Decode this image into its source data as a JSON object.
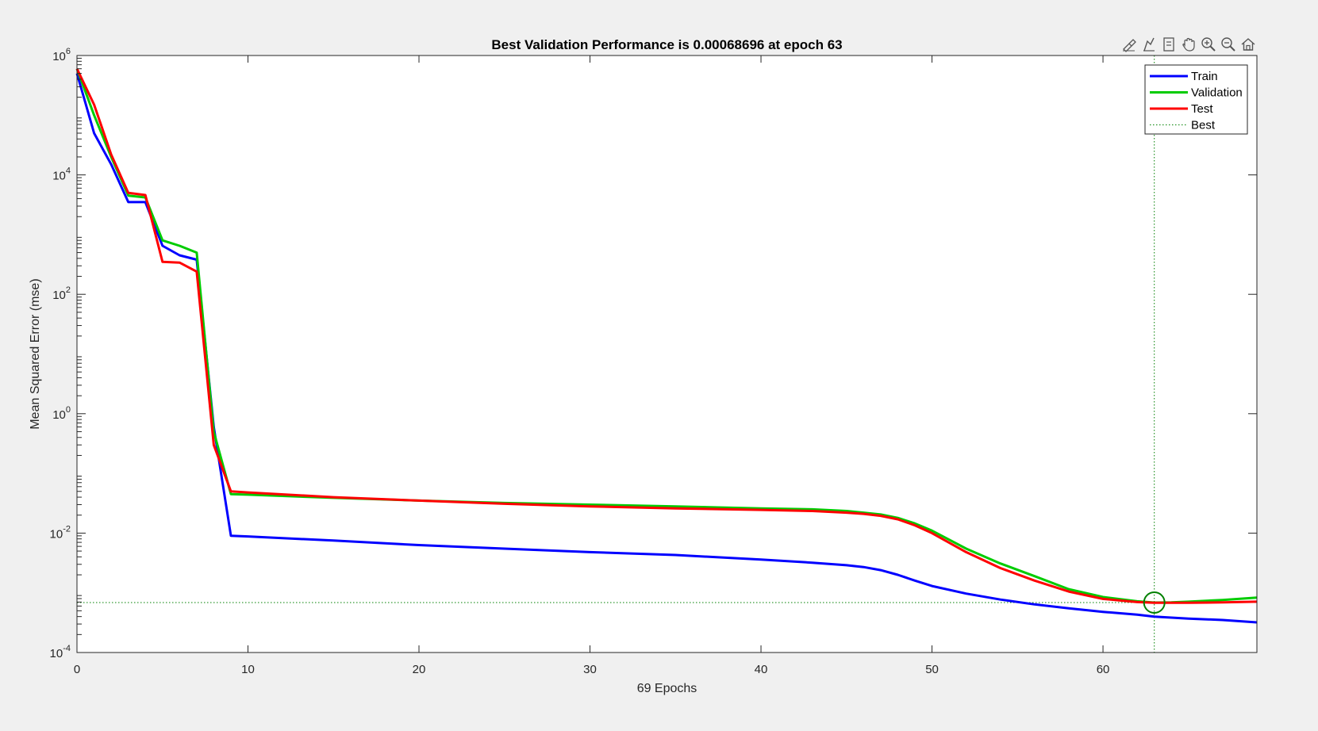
{
  "colors": {
    "train": "#0000ff",
    "validation": "#00cc00",
    "test": "#ff0000",
    "best": "#008000",
    "background": "#f0f0f0",
    "axes": "#ffffff"
  },
  "toolbar": {
    "icons": [
      "brush-icon",
      "data-tip-icon",
      "datacursor-icon",
      "pan-hand-icon",
      "zoom-in-icon",
      "zoom-out-icon",
      "home-icon"
    ]
  },
  "chart_data": {
    "type": "line",
    "title": "Best Validation Performance is 0.00068696 at epoch 63",
    "xlabel": "69 Epochs",
    "ylabel": "Mean Squared Error  (mse)",
    "xlim": [
      0,
      69
    ],
    "ylim": [
      0.0001,
      1000000
    ],
    "yscale": "log",
    "x_ticks": [
      0,
      10,
      20,
      30,
      40,
      50,
      60
    ],
    "x_tick_labels": [
      "0",
      "10",
      "20",
      "30",
      "40",
      "50",
      "60"
    ],
    "y_ticks": [
      0.0001,
      0.01,
      1,
      100,
      10000,
      1000000
    ],
    "y_tick_labels": [
      {
        "base": "10",
        "exp": "-4"
      },
      {
        "base": "10",
        "exp": "-2"
      },
      {
        "base": "10",
        "exp": "0"
      },
      {
        "base": "10",
        "exp": "2"
      },
      {
        "base": "10",
        "exp": "4"
      },
      {
        "base": "10",
        "exp": "6"
      }
    ],
    "grid": false,
    "legend_position": "top-right",
    "series": [
      {
        "name": "Train",
        "color": "#0000ff",
        "x": [
          0,
          1,
          2,
          3,
          4,
          5,
          6,
          7,
          8,
          9,
          10,
          15,
          20,
          25,
          30,
          35,
          40,
          43,
          45,
          46,
          47,
          48,
          49,
          50,
          52,
          54,
          56,
          58,
          60,
          62,
          63,
          65,
          67,
          69
        ],
        "y": [
          500000,
          50000,
          15000,
          3500,
          3500,
          650,
          450,
          380,
          0.6,
          0.009,
          0.0088,
          0.0075,
          0.0063,
          0.0055,
          0.0048,
          0.0043,
          0.0036,
          0.0032,
          0.0029,
          0.0027,
          0.0024,
          0.002,
          0.0016,
          0.0013,
          0.00097,
          0.00077,
          0.00064,
          0.00055,
          0.00048,
          0.00043,
          0.0004,
          0.00037,
          0.00035,
          0.00032
        ]
      },
      {
        "name": "Validation",
        "color": "#00cc00",
        "x": [
          0,
          1,
          2,
          3,
          4,
          5,
          6,
          7,
          8,
          9,
          10,
          15,
          20,
          25,
          30,
          35,
          40,
          43,
          45,
          46,
          47,
          48,
          49,
          50,
          52,
          54,
          56,
          58,
          60,
          62,
          63,
          64,
          65,
          67,
          69
        ],
        "y": [
          600000,
          100000,
          20000,
          4500,
          4200,
          800,
          650,
          500,
          0.5,
          0.045,
          0.044,
          0.039,
          0.035,
          0.032,
          0.03,
          0.028,
          0.026,
          0.025,
          0.0235,
          0.022,
          0.0205,
          0.018,
          0.0145,
          0.011,
          0.0055,
          0.0031,
          0.0019,
          0.00115,
          0.00085,
          0.00072,
          0.00068696,
          0.00069,
          0.00071,
          0.00076,
          0.00083
        ]
      },
      {
        "name": "Test",
        "color": "#ff0000",
        "x": [
          0,
          1,
          2,
          3,
          4,
          5,
          6,
          7,
          8,
          9,
          10,
          15,
          20,
          25,
          30,
          35,
          40,
          43,
          45,
          46,
          47,
          48,
          49,
          50,
          52,
          54,
          56,
          58,
          60,
          62,
          63,
          65,
          67,
          69
        ],
        "y": [
          600000,
          150000,
          22000,
          5000,
          4600,
          350,
          340,
          240,
          0.3,
          0.05,
          0.048,
          0.04,
          0.035,
          0.031,
          0.028,
          0.026,
          0.0245,
          0.0235,
          0.022,
          0.021,
          0.0195,
          0.017,
          0.0135,
          0.01,
          0.0048,
          0.0026,
          0.0016,
          0.00105,
          0.00079,
          0.0007,
          0.00068,
          0.00068,
          0.00069,
          0.00071
        ]
      }
    ],
    "best": {
      "label": "Best",
      "epoch": 63,
      "value": 0.00068696
    }
  }
}
